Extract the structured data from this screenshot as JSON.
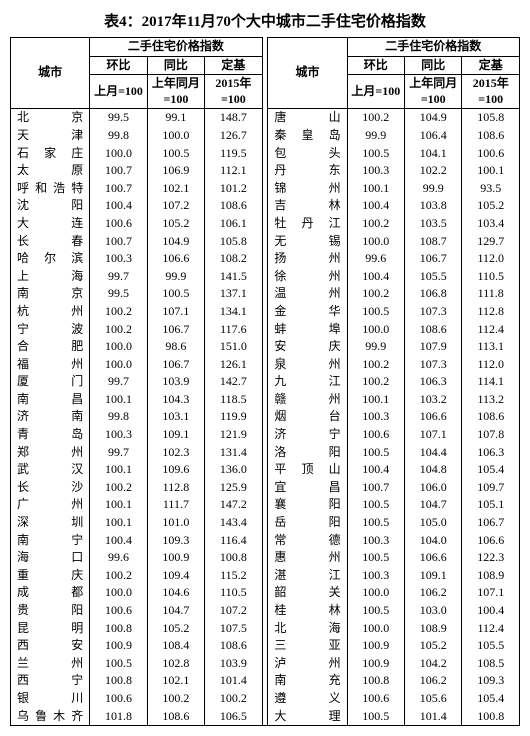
{
  "title": "表4：2017年11月70个大中城市二手住宅价格指数",
  "headers": {
    "city": "城市",
    "group": "二手住宅价格指数",
    "col1": "环比",
    "col2": "同比",
    "col3": "定基",
    "sub1": "上月=100",
    "sub2": "上年同月=100",
    "sub3": "2015年=100"
  },
  "left": [
    {
      "city": "北　　京",
      "v": [
        "99.5",
        "99.1",
        "148.7"
      ]
    },
    {
      "city": "天　　津",
      "v": [
        "99.8",
        "100.0",
        "126.7"
      ]
    },
    {
      "city": "石 家 庄",
      "v": [
        "100.0",
        "100.5",
        "119.5"
      ]
    },
    {
      "city": "太　　原",
      "v": [
        "100.7",
        "106.9",
        "112.1"
      ]
    },
    {
      "city": "呼和浩特",
      "v": [
        "100.7",
        "102.1",
        "101.2"
      ]
    },
    {
      "city": "沈　　阳",
      "v": [
        "100.4",
        "107.2",
        "108.6"
      ]
    },
    {
      "city": "大　　连",
      "v": [
        "100.6",
        "105.2",
        "106.1"
      ]
    },
    {
      "city": "长　　春",
      "v": [
        "100.7",
        "104.9",
        "105.8"
      ]
    },
    {
      "city": "哈 尔 滨",
      "v": [
        "100.3",
        "106.6",
        "108.2"
      ]
    },
    {
      "city": "上　　海",
      "v": [
        "99.7",
        "99.9",
        "141.5"
      ]
    },
    {
      "city": "南　　京",
      "v": [
        "99.5",
        "100.5",
        "137.1"
      ]
    },
    {
      "city": "杭　　州",
      "v": [
        "100.2",
        "107.1",
        "134.1"
      ]
    },
    {
      "city": "宁　　波",
      "v": [
        "100.2",
        "106.7",
        "117.6"
      ]
    },
    {
      "city": "合　　肥",
      "v": [
        "100.0",
        "98.6",
        "151.0"
      ]
    },
    {
      "city": "福　　州",
      "v": [
        "100.0",
        "106.7",
        "126.1"
      ]
    },
    {
      "city": "厦　　门",
      "v": [
        "99.7",
        "103.9",
        "142.7"
      ]
    },
    {
      "city": "南　　昌",
      "v": [
        "100.1",
        "104.3",
        "118.5"
      ]
    },
    {
      "city": "济　　南",
      "v": [
        "99.8",
        "103.1",
        "119.9"
      ]
    },
    {
      "city": "青　　岛",
      "v": [
        "100.3",
        "109.1",
        "121.9"
      ]
    },
    {
      "city": "郑　　州",
      "v": [
        "99.7",
        "102.3",
        "131.4"
      ]
    },
    {
      "city": "武　　汉",
      "v": [
        "100.1",
        "109.6",
        "136.0"
      ]
    },
    {
      "city": "长　　沙",
      "v": [
        "100.2",
        "112.8",
        "125.9"
      ]
    },
    {
      "city": "广　　州",
      "v": [
        "100.1",
        "111.7",
        "147.2"
      ]
    },
    {
      "city": "深　　圳",
      "v": [
        "100.1",
        "101.0",
        "143.4"
      ]
    },
    {
      "city": "南　　宁",
      "v": [
        "100.4",
        "109.3",
        "116.4"
      ]
    },
    {
      "city": "海　　口",
      "v": [
        "99.6",
        "100.9",
        "100.8"
      ]
    },
    {
      "city": "重　　庆",
      "v": [
        "100.2",
        "109.4",
        "115.2"
      ]
    },
    {
      "city": "成　　都",
      "v": [
        "100.0",
        "104.6",
        "110.5"
      ]
    },
    {
      "city": "贵　　阳",
      "v": [
        "100.6",
        "104.7",
        "107.2"
      ]
    },
    {
      "city": "昆　　明",
      "v": [
        "100.8",
        "105.2",
        "107.5"
      ]
    },
    {
      "city": "西　　安",
      "v": [
        "100.9",
        "108.4",
        "108.6"
      ]
    },
    {
      "city": "兰　　州",
      "v": [
        "100.5",
        "102.8",
        "103.9"
      ]
    },
    {
      "city": "西　　宁",
      "v": [
        "100.8",
        "102.1",
        "101.4"
      ]
    },
    {
      "city": "银　　川",
      "v": [
        "100.6",
        "100.2",
        "100.2"
      ]
    },
    {
      "city": "乌鲁木齐",
      "v": [
        "101.8",
        "108.6",
        "106.5"
      ]
    }
  ],
  "right": [
    {
      "city": "唐　　山",
      "v": [
        "100.2",
        "104.9",
        "105.8"
      ]
    },
    {
      "city": "秦 皇 岛",
      "v": [
        "99.9",
        "106.4",
        "108.6"
      ]
    },
    {
      "city": "包　　头",
      "v": [
        "100.5",
        "104.1",
        "100.6"
      ]
    },
    {
      "city": "丹　　东",
      "v": [
        "100.3",
        "102.2",
        "100.1"
      ]
    },
    {
      "city": "锦　　州",
      "v": [
        "100.1",
        "99.9",
        "93.5"
      ]
    },
    {
      "city": "吉　　林",
      "v": [
        "100.4",
        "103.8",
        "105.2"
      ]
    },
    {
      "city": "牡 丹 江",
      "v": [
        "100.2",
        "103.5",
        "103.4"
      ]
    },
    {
      "city": "无　　锡",
      "v": [
        "100.0",
        "108.7",
        "129.7"
      ]
    },
    {
      "city": "扬　　州",
      "v": [
        "99.6",
        "106.7",
        "112.0"
      ]
    },
    {
      "city": "徐　　州",
      "v": [
        "100.4",
        "105.5",
        "110.5"
      ]
    },
    {
      "city": "温　　州",
      "v": [
        "100.2",
        "106.8",
        "111.8"
      ]
    },
    {
      "city": "金　　华",
      "v": [
        "100.5",
        "107.3",
        "112.8"
      ]
    },
    {
      "city": "蚌　　埠",
      "v": [
        "100.0",
        "108.6",
        "112.4"
      ]
    },
    {
      "city": "安　　庆",
      "v": [
        "99.9",
        "107.9",
        "113.1"
      ]
    },
    {
      "city": "泉　　州",
      "v": [
        "100.2",
        "107.3",
        "112.0"
      ]
    },
    {
      "city": "九　　江",
      "v": [
        "100.2",
        "106.3",
        "114.1"
      ]
    },
    {
      "city": "赣　　州",
      "v": [
        "100.1",
        "103.2",
        "113.2"
      ]
    },
    {
      "city": "烟　　台",
      "v": [
        "100.3",
        "106.6",
        "108.6"
      ]
    },
    {
      "city": "济　　宁",
      "v": [
        "100.6",
        "107.1",
        "107.8"
      ]
    },
    {
      "city": "洛　　阳",
      "v": [
        "100.5",
        "104.4",
        "106.3"
      ]
    },
    {
      "city": "平 顶 山",
      "v": [
        "100.4",
        "104.8",
        "105.4"
      ]
    },
    {
      "city": "宜　　昌",
      "v": [
        "100.7",
        "106.0",
        "109.7"
      ]
    },
    {
      "city": "襄　　阳",
      "v": [
        "100.5",
        "104.7",
        "105.1"
      ]
    },
    {
      "city": "岳　　阳",
      "v": [
        "100.5",
        "105.0",
        "106.7"
      ]
    },
    {
      "city": "常　　德",
      "v": [
        "100.3",
        "104.0",
        "106.6"
      ]
    },
    {
      "city": "惠　　州",
      "v": [
        "100.5",
        "106.6",
        "122.3"
      ]
    },
    {
      "city": "湛　　江",
      "v": [
        "100.3",
        "109.1",
        "108.9"
      ]
    },
    {
      "city": "韶　　关",
      "v": [
        "100.0",
        "106.2",
        "107.1"
      ]
    },
    {
      "city": "桂　　林",
      "v": [
        "100.5",
        "103.0",
        "100.4"
      ]
    },
    {
      "city": "北　　海",
      "v": [
        "100.0",
        "108.9",
        "112.4"
      ]
    },
    {
      "city": "三　　亚",
      "v": [
        "100.9",
        "105.2",
        "105.5"
      ]
    },
    {
      "city": "泸　　州",
      "v": [
        "100.9",
        "104.2",
        "108.5"
      ]
    },
    {
      "city": "南　　充",
      "v": [
        "100.8",
        "106.2",
        "109.3"
      ]
    },
    {
      "city": "遵　　义",
      "v": [
        "100.6",
        "105.6",
        "105.4"
      ]
    },
    {
      "city": "大　　理",
      "v": [
        "100.5",
        "101.4",
        "100.8"
      ]
    }
  ]
}
